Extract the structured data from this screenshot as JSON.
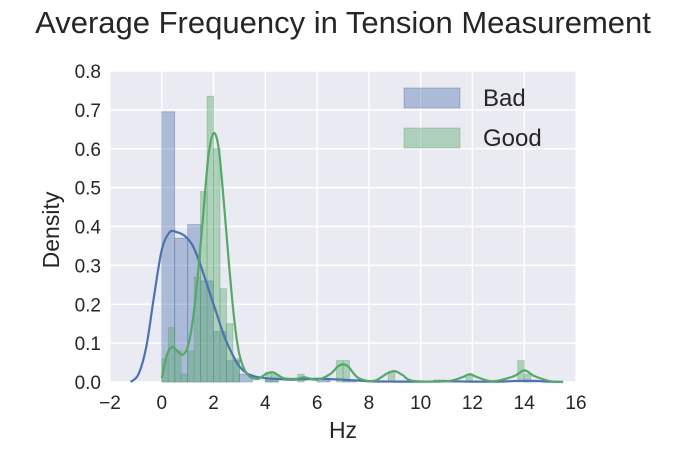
{
  "chart_data": {
    "type": "histogram with density curves",
    "title": "Average Frequency in Tension Measurement",
    "xlabel": "Hz",
    "ylabel": "Density",
    "xlim": [
      -2,
      16
    ],
    "ylim": [
      0,
      0.8
    ],
    "xticks": [
      "−2",
      "0",
      "2",
      "4",
      "6",
      "8",
      "10",
      "12",
      "14",
      "16"
    ],
    "yticks": [
      "0.0",
      "0.1",
      "0.2",
      "0.3",
      "0.4",
      "0.5",
      "0.6",
      "0.7",
      "0.8"
    ],
    "grid": true,
    "legend_position": "top-right",
    "series": [
      {
        "name": "Bad",
        "color": "#4c72b0",
        "bins": [
          [
            0.0,
            0.5,
            0.695
          ],
          [
            0.5,
            1.0,
            0.37
          ],
          [
            1.0,
            1.5,
            0.405
          ],
          [
            1.5,
            2.0,
            0.26
          ],
          [
            2.0,
            2.5,
            0.13
          ],
          [
            2.5,
            3.0,
            0.055
          ],
          [
            3.0,
            3.5,
            0.02
          ],
          [
            4.0,
            4.5,
            0.01
          ],
          [
            6.0,
            6.5,
            0.01
          ],
          [
            7.0,
            7.5,
            0.005
          ],
          [
            10.5,
            11.0,
            0.005
          ],
          [
            14.0,
            14.5,
            0.005
          ]
        ],
        "kde": [
          [
            -1.2,
            0.0
          ],
          [
            -0.9,
            0.02
          ],
          [
            -0.6,
            0.09
          ],
          [
            -0.3,
            0.22
          ],
          [
            0.0,
            0.34
          ],
          [
            0.3,
            0.385
          ],
          [
            0.6,
            0.385
          ],
          [
            0.9,
            0.375
          ],
          [
            1.2,
            0.35
          ],
          [
            1.5,
            0.3
          ],
          [
            1.8,
            0.24
          ],
          [
            2.1,
            0.18
          ],
          [
            2.4,
            0.12
          ],
          [
            2.7,
            0.075
          ],
          [
            3.0,
            0.04
          ],
          [
            3.4,
            0.018
          ],
          [
            4.0,
            0.01
          ],
          [
            4.5,
            0.008
          ],
          [
            5.0,
            0.006
          ],
          [
            6.0,
            0.008
          ],
          [
            7.0,
            0.006
          ],
          [
            8.0,
            0.002
          ],
          [
            9.0,
            0.001
          ],
          [
            10.0,
            0.001
          ],
          [
            11.0,
            0.002
          ],
          [
            12.0,
            0.001
          ],
          [
            13.0,
            0.001
          ],
          [
            14.0,
            0.003
          ],
          [
            15.0,
            0.001
          ],
          [
            15.5,
            0.0
          ]
        ]
      },
      {
        "name": "Good",
        "color": "#55a868",
        "bins": [
          [
            0.0,
            0.25,
            0.06
          ],
          [
            0.25,
            0.5,
            0.14
          ],
          [
            0.5,
            0.75,
            0.08
          ],
          [
            0.75,
            1.0,
            0.02
          ],
          [
            1.0,
            1.25,
            0.08
          ],
          [
            1.25,
            1.5,
            0.27
          ],
          [
            1.5,
            1.75,
            0.49
          ],
          [
            1.75,
            2.0,
            0.735
          ],
          [
            2.0,
            2.25,
            0.6
          ],
          [
            2.25,
            2.5,
            0.24
          ],
          [
            2.5,
            2.75,
            0.15
          ],
          [
            2.75,
            3.0,
            0.06
          ],
          [
            4.0,
            4.25,
            0.025
          ],
          [
            4.25,
            4.5,
            0.02
          ],
          [
            5.25,
            5.5,
            0.02
          ],
          [
            6.75,
            7.0,
            0.055
          ],
          [
            7.0,
            7.25,
            0.055
          ],
          [
            8.75,
            9.0,
            0.025
          ],
          [
            11.75,
            12.0,
            0.02
          ],
          [
            13.75,
            14.0,
            0.055
          ],
          [
            14.0,
            14.25,
            0.02
          ]
        ],
        "kde": [
          [
            0.0,
            0.01
          ],
          [
            0.2,
            0.07
          ],
          [
            0.4,
            0.09
          ],
          [
            0.6,
            0.08
          ],
          [
            0.8,
            0.07
          ],
          [
            1.0,
            0.09
          ],
          [
            1.2,
            0.16
          ],
          [
            1.4,
            0.28
          ],
          [
            1.6,
            0.43
          ],
          [
            1.8,
            0.58
          ],
          [
            2.0,
            0.64
          ],
          [
            2.2,
            0.6
          ],
          [
            2.4,
            0.46
          ],
          [
            2.6,
            0.3
          ],
          [
            2.8,
            0.16
          ],
          [
            3.0,
            0.07
          ],
          [
            3.3,
            0.02
          ],
          [
            3.7,
            0.008
          ],
          [
            4.0,
            0.02
          ],
          [
            4.3,
            0.025
          ],
          [
            4.7,
            0.01
          ],
          [
            5.2,
            0.008
          ],
          [
            5.5,
            0.012
          ],
          [
            6.0,
            0.006
          ],
          [
            6.5,
            0.02
          ],
          [
            6.8,
            0.04
          ],
          [
            7.0,
            0.045
          ],
          [
            7.2,
            0.04
          ],
          [
            7.6,
            0.01
          ],
          [
            8.2,
            0.003
          ],
          [
            8.7,
            0.022
          ],
          [
            9.0,
            0.028
          ],
          [
            9.3,
            0.018
          ],
          [
            9.7,
            0.003
          ],
          [
            11.0,
            0.002
          ],
          [
            11.6,
            0.012
          ],
          [
            11.9,
            0.02
          ],
          [
            12.2,
            0.012
          ],
          [
            12.8,
            0.002
          ],
          [
            13.6,
            0.015
          ],
          [
            14.0,
            0.03
          ],
          [
            14.4,
            0.015
          ],
          [
            15.0,
            0.002
          ],
          [
            15.5,
            0.0
          ]
        ]
      }
    ]
  }
}
